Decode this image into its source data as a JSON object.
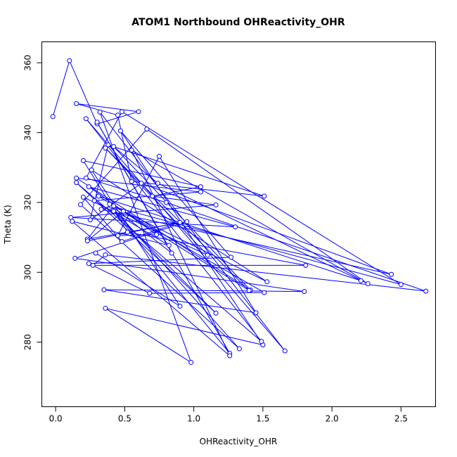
{
  "chart_data": {
    "type": "line",
    "title": "ATOM1 Northbound OHReactivity_OHR",
    "xlabel": "OHReactivity_OHR",
    "ylabel": "Theta (K)",
    "xlim": [
      -0.1,
      2.75
    ],
    "ylim": [
      261.5,
      366
    ],
    "x_ticks": [
      0.0,
      0.5,
      1.0,
      1.5,
      2.0,
      2.5
    ],
    "x_tick_labels": [
      "0.0",
      "0.5",
      "1.0",
      "1.5",
      "2.0",
      "2.5"
    ],
    "y_ticks": [
      280,
      300,
      320,
      340,
      360
    ],
    "y_tick_labels": [
      "280",
      "300",
      "320",
      "340",
      "360"
    ],
    "grid": false,
    "marker": "open-circle",
    "color": "#0000ff",
    "series": [
      {
        "x": [
          -0.02,
          0.1,
          0.3,
          0.6,
          0.15,
          0.45,
          0.55,
          1.51,
          0.38,
          0.25,
          0.62,
          2.43,
          0.33,
          0.4,
          2.5,
          0.48,
          0.22,
          0.8,
          2.68,
          0.36,
          0.27,
          1.81,
          0.52,
          0.2,
          1.05,
          0.7,
          1.16,
          0.11,
          1.3,
          0.24,
          0.73,
          0.45,
          0.75,
          1.45,
          0.35,
          1.8,
          0.14,
          0.95,
          0.23,
          0.42,
          1.51,
          0.68,
          0.24,
          1.27,
          0.47,
          1.5,
          0.36,
          0.98,
          0.32,
          1.66,
          0.22,
          1.49,
          0.15,
          1.16,
          0.42,
          1.26,
          0.3,
          0.84,
          0.39,
          1.33,
          0.18,
          0.66,
          2.26,
          0.55,
          1.26,
          0.12,
          0.82,
          0.28,
          1.05,
          0.15,
          1.41,
          0.42,
          0.74,
          2.21,
          0.31,
          1.4,
          0.36,
          1.1,
          0.2,
          0.48,
          0.9,
          0.23,
          0.49,
          1.53,
          0.26,
          0.9,
          0.29
        ],
        "y": [
          344.6,
          360.6,
          342.5,
          346.0,
          348.3,
          345.0,
          326.0,
          321.8,
          336.5,
          315.0,
          325.5,
          299.4,
          318.0,
          319.0,
          296.5,
          346.0,
          327.0,
          320.0,
          294.6,
          305.0,
          302.0,
          302.0,
          311.5,
          332.0,
          324.5,
          321.8,
          319.3,
          315.7,
          313.0,
          324.5,
          310.8,
          310.5,
          333.2,
          288.4,
          295.0,
          294.5,
          304.0,
          314.5,
          309.5,
          319.0,
          294.2,
          294.0,
          302.5,
          304.3,
          340.5,
          279.2,
          289.7,
          274.2,
          345.9,
          277.5,
          344.0,
          280.2,
          325.7,
          288.3,
          317.5,
          276.8,
          343.0,
          305.5,
          319.5,
          278.1,
          319.4,
          341.0,
          296.7,
          335.0,
          276.1,
          314.6,
          307.7,
          320.5,
          323.0,
          327.0,
          294.9,
          336.0,
          325.5,
          297.6,
          321.8,
          294.8,
          335.6,
          304.9,
          321.5,
          308.8,
          314.3,
          309.0,
          317.5,
          297.3,
          329.3,
          290.3,
          305.5
        ]
      }
    ]
  }
}
